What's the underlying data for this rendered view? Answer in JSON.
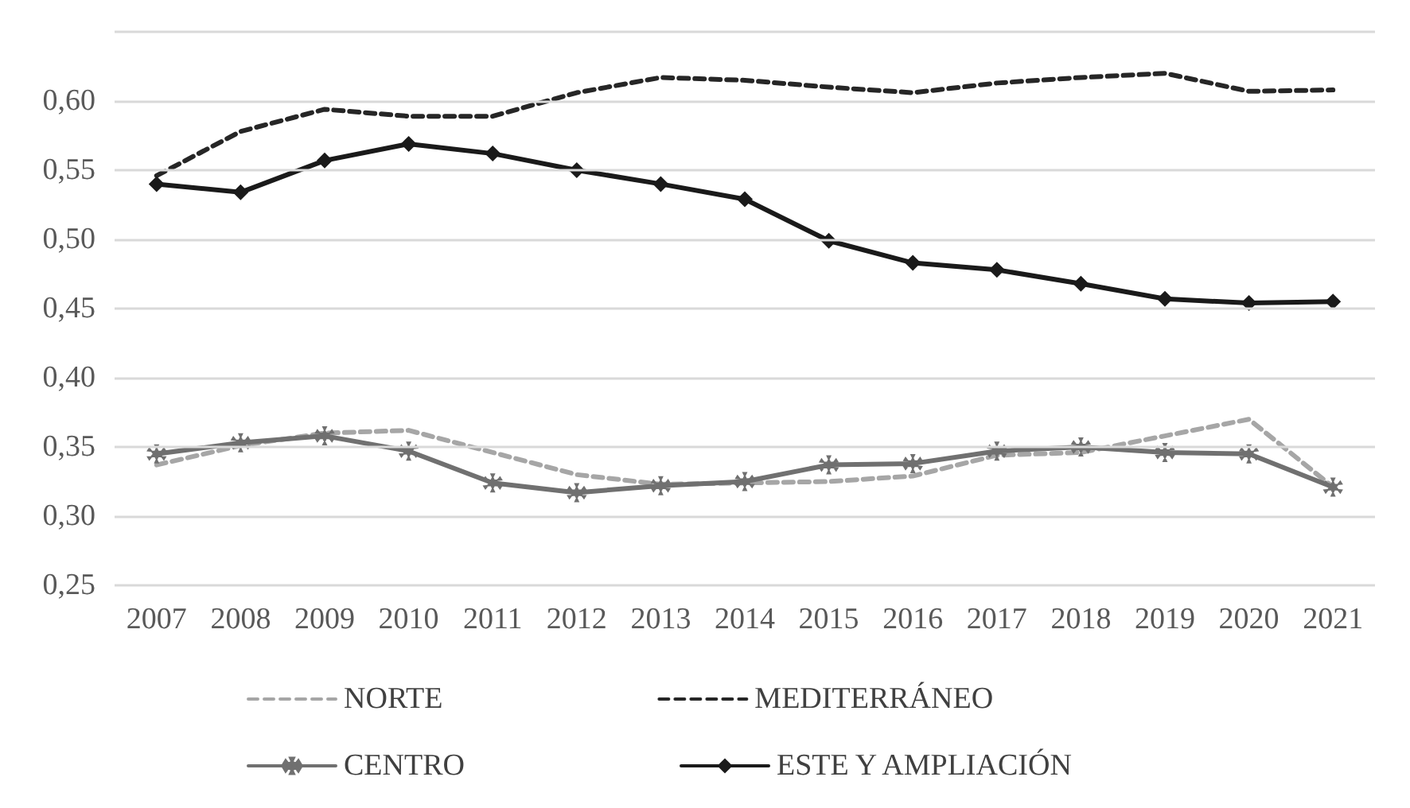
{
  "chart_data": {
    "type": "line",
    "categories": [
      "2007",
      "2008",
      "2009",
      "2010",
      "2011",
      "2012",
      "2013",
      "2014",
      "2015",
      "2016",
      "2017",
      "2018",
      "2019",
      "2020",
      "2021"
    ],
    "ylim": [
      0.25,
      0.65
    ],
    "yticks": [
      {
        "value": 0.25,
        "label": "0,25"
      },
      {
        "value": 0.3,
        "label": "0,30"
      },
      {
        "value": 0.35,
        "label": "0,35"
      },
      {
        "value": 0.4,
        "label": "0,40"
      },
      {
        "value": 0.45,
        "label": "0,45"
      },
      {
        "value": 0.5,
        "label": "0,50"
      },
      {
        "value": 0.55,
        "label": "0,55"
      },
      {
        "value": 0.6,
        "label": "0,60"
      },
      {
        "value": 0.65,
        "label": null
      }
    ],
    "grid": "y",
    "legend": "bottom",
    "series": [
      {
        "name": "NORTE",
        "color": "#a6a6a6",
        "line_style": "dashed",
        "marker": "none",
        "values": [
          0.337,
          0.351,
          0.36,
          0.362,
          0.346,
          0.33,
          0.323,
          0.324,
          0.325,
          0.329,
          0.344,
          0.346,
          0.358,
          0.37,
          0.321
        ]
      },
      {
        "name": "MEDITERRÁNEO",
        "color": "#262626",
        "line_style": "dashed",
        "marker": "none",
        "values": [
          0.546,
          0.578,
          0.594,
          0.589,
          0.589,
          0.606,
          0.617,
          0.615,
          0.61,
          0.606,
          0.613,
          0.617,
          0.62,
          0.607,
          0.608
        ]
      },
      {
        "name": "CENTRO",
        "color": "#707070",
        "line_style": "solid",
        "marker": "cross",
        "values": [
          0.345,
          0.353,
          0.358,
          0.347,
          0.324,
          0.317,
          0.322,
          0.325,
          0.337,
          0.338,
          0.347,
          0.35,
          0.346,
          0.345,
          0.321
        ]
      },
      {
        "name": "ESTE Y AMPLIACIÓN",
        "color": "#1a1a1a",
        "line_style": "solid",
        "marker": "diamond",
        "values": [
          0.54,
          0.534,
          0.557,
          0.569,
          0.562,
          0.55,
          0.54,
          0.529,
          0.499,
          0.483,
          0.478,
          0.468,
          0.457,
          0.454,
          0.455
        ]
      }
    ]
  }
}
